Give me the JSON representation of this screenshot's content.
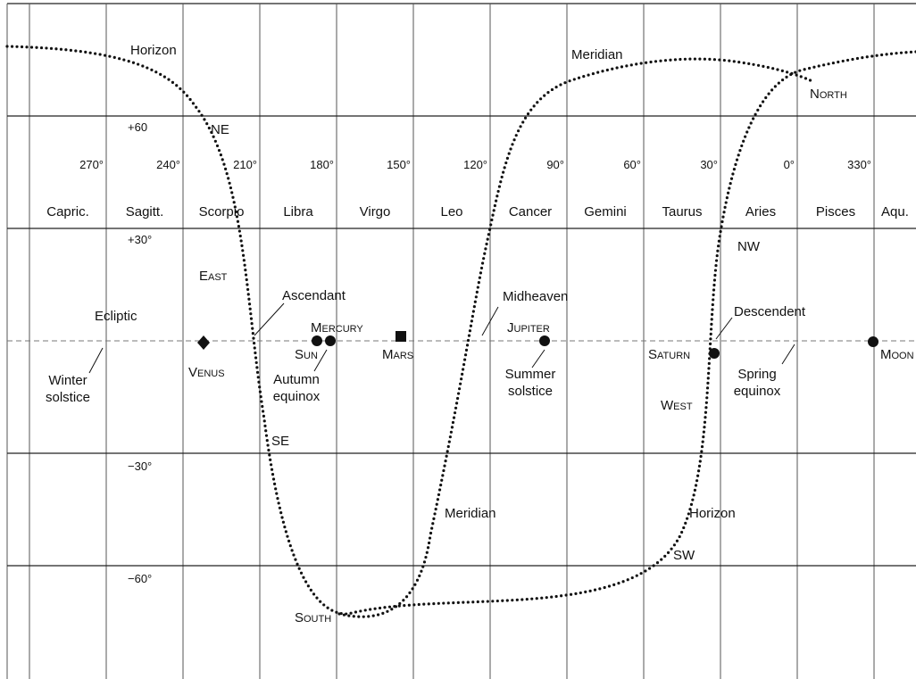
{
  "longitudes": [
    "270°",
    "240°",
    "210°",
    "180°",
    "150°",
    "120°",
    "90°",
    "60°",
    "30°",
    "0°",
    "330°"
  ],
  "constellations": [
    "Capric.",
    "Sagitt.",
    "Scorpio",
    "Libra",
    "Virgo",
    "Leo",
    "Cancer",
    "Gemini",
    "Taurus",
    "Aries",
    "Pisces",
    "Aqu."
  ],
  "latitudes": {
    "p60": "+60",
    "p30": "+30°",
    "m30": "−30°",
    "m60": "−60°"
  },
  "curves": {
    "horizon": "Horizon",
    "meridian": "Meridian"
  },
  "directions": {
    "north": "North",
    "ne": "NE",
    "east": "East",
    "se": "SE",
    "south": "South",
    "sw": "SW",
    "west": "West",
    "nw": "NW"
  },
  "ecliptic_points": {
    "ecliptic": "Ecliptic",
    "ascendant": "Ascendant",
    "midheaven": "Midheaven",
    "descendent": "Descendent",
    "winter_solstice": [
      "Winter",
      "solstice"
    ],
    "autumn_equinox": [
      "Autumn",
      "equinox"
    ],
    "summer_solstice": [
      "Summer",
      "solstice"
    ],
    "spring_equinox": [
      "Spring",
      "equinox"
    ]
  },
  "planets": {
    "venus": "Venus",
    "sun": "Sun",
    "mercury": "Mercury",
    "mars": "Mars",
    "jupiter": "Jupiter",
    "saturn": "Saturn",
    "moon": "Moon"
  }
}
